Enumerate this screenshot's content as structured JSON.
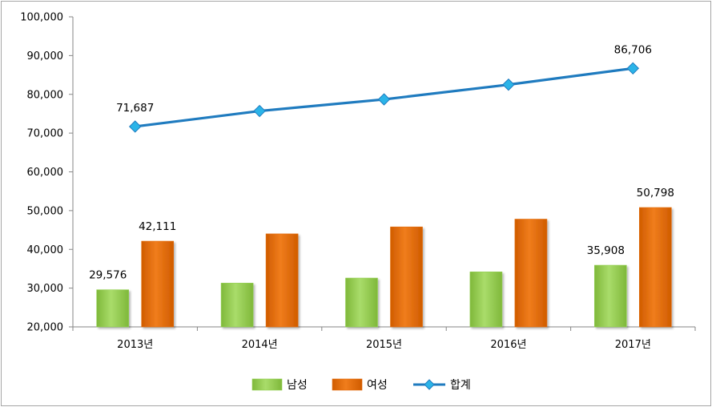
{
  "chart_data": {
    "type": "bar",
    "categories": [
      "2013년",
      "2014년",
      "2015년",
      "2016년",
      "2017년"
    ],
    "ylim": [
      20000,
      100000
    ],
    "ytick_step": 10000,
    "grid": false,
    "legend_position": "bottom",
    "series": [
      {
        "name": "남성",
        "kind": "bar",
        "color": "#92d050",
        "values": [
          29576,
          31300,
          32600,
          34200,
          35908
        ]
      },
      {
        "name": "여성",
        "kind": "bar",
        "color": "#e46c0a",
        "values": [
          42111,
          44000,
          45800,
          47800,
          50798
        ]
      },
      {
        "name": "합계",
        "kind": "line",
        "color": "#1f7bbf",
        "marker_color": "#2bb4e8",
        "values": [
          71687,
          75700,
          78700,
          82500,
          86706
        ]
      }
    ],
    "data_labels": [
      {
        "series": 0,
        "index": 0,
        "text": "29,576"
      },
      {
        "series": 1,
        "index": 0,
        "text": "42,111"
      },
      {
        "series": 2,
        "index": 0,
        "text": "71,687"
      },
      {
        "series": 0,
        "index": 4,
        "text": "35,908"
      },
      {
        "series": 1,
        "index": 4,
        "text": "50,798"
      },
      {
        "series": 2,
        "index": 4,
        "text": "86,706"
      }
    ]
  }
}
